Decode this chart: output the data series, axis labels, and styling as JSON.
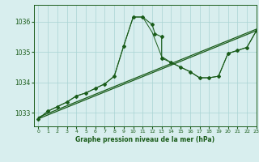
{
  "title": "Graphe pression niveau de la mer (hPa)",
  "bg_color": "#d8eeee",
  "line_color": "#1a5c1a",
  "grid_color": "#aad4d4",
  "xlim": [
    -0.5,
    23
  ],
  "ylim": [
    1032.55,
    1036.55
  ],
  "yticks": [
    1033,
    1034,
    1035,
    1036
  ],
  "xticks": [
    0,
    1,
    2,
    3,
    4,
    5,
    6,
    7,
    8,
    9,
    10,
    11,
    12,
    13,
    14,
    15,
    16,
    17,
    18,
    19,
    20,
    21,
    22,
    23
  ],
  "jagged1_x": [
    0,
    1,
    2,
    3,
    4,
    5,
    6,
    7,
    8,
    9,
    10,
    11,
    12,
    12.3,
    13.0,
    13.0,
    14,
    15,
    16,
    17,
    18,
    19,
    20,
    21,
    22,
    23
  ],
  "jagged1_y": [
    1032.8,
    1033.05,
    1033.2,
    1033.35,
    1033.55,
    1033.65,
    1033.8,
    1033.95,
    1034.2,
    1035.2,
    1036.15,
    1036.15,
    1035.9,
    1035.6,
    1035.5,
    1034.8,
    1034.65,
    1034.5,
    1034.35,
    1034.15,
    1034.15,
    1034.2,
    1034.95,
    1035.05,
    1035.15,
    1035.7
  ],
  "jagged2_x": [
    0,
    1,
    2,
    3,
    4,
    5,
    6,
    7,
    8,
    9,
    10,
    11,
    12,
    13,
    14,
    15,
    16,
    17,
    18,
    19,
    20,
    21,
    22,
    23
  ],
  "jagged2_y": [
    1032.8,
    1033.05,
    1033.2,
    1033.35,
    1033.55,
    1033.65,
    1033.8,
    1033.95,
    1034.2,
    1035.2,
    1036.15,
    1036.15,
    1035.65,
    1034.85,
    1034.65,
    1034.5,
    1034.35,
    1034.15,
    1034.15,
    1034.2,
    1034.95,
    1035.05,
    1035.15,
    1035.7
  ],
  "trend1_x": [
    0,
    23
  ],
  "trend1_y": [
    1032.8,
    1035.7
  ],
  "trend2_x": [
    0,
    23
  ],
  "trend2_y": [
    1032.85,
    1035.75
  ],
  "marker_x": [
    0,
    1,
    2,
    3,
    4,
    5,
    6,
    7,
    8,
    9,
    10,
    11,
    12,
    13,
    14,
    15,
    16,
    17,
    18,
    19,
    20,
    21,
    22,
    23
  ],
  "marker_y": [
    1032.8,
    1033.05,
    1033.2,
    1033.35,
    1033.55,
    1033.65,
    1033.8,
    1033.95,
    1034.2,
    1035.2,
    1036.15,
    1036.15,
    1035.65,
    1034.85,
    1034.65,
    1034.5,
    1034.35,
    1034.15,
    1034.15,
    1034.2,
    1034.95,
    1035.05,
    1035.15,
    1035.7
  ]
}
